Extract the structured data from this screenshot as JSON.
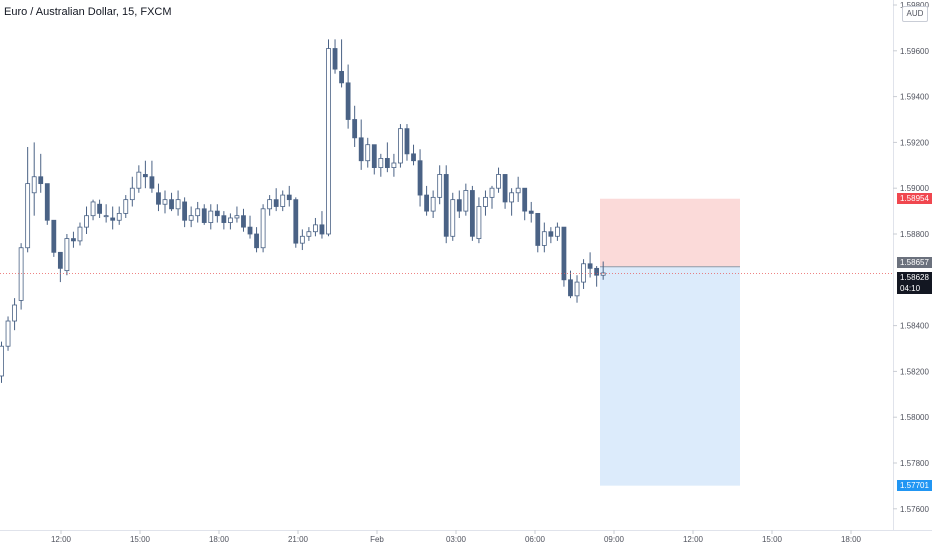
{
  "header": {
    "title": "Euro / Australian Dollar, 15, FXCM",
    "currency": "AUD"
  },
  "colors": {
    "up_fill": "#ffffff",
    "down_fill": "#4a6285",
    "wick": "#4a6285",
    "stop_zone": "#fbdad9",
    "target_zone": "#dcebfb",
    "stop_tag": "#f0474f",
    "target_tag": "#2196f3",
    "entry_tag": "#6b717d",
    "last_tag": "#131722",
    "current_line": "#e85a5a"
  },
  "price_tags": {
    "stop": "1.58954",
    "entry": "1.58657",
    "last": "1.58628",
    "countdown": "04:10",
    "target": "1.57701"
  },
  "chart_data": {
    "type": "candlestick",
    "title": "Euro / Australian Dollar, 15, FXCM",
    "y_axis_ticks": [
      "1.59800",
      "1.59600",
      "1.59400",
      "1.59200",
      "1.59000",
      "1.58800",
      "1.58400",
      "1.58200",
      "1.58000",
      "1.57800",
      "1.57600"
    ],
    "x_axis_ticks": [
      "12:00",
      "15:00",
      "18:00",
      "21:00",
      "Feb",
      "03:00",
      "06:00",
      "09:00",
      "12:00",
      "15:00",
      "18:00"
    ],
    "ylim": [
      1.5758,
      1.5983
    ],
    "candles": [
      [
        1.5818,
        1.5833,
        1.5815,
        1.5831
      ],
      [
        1.5831,
        1.5844,
        1.5829,
        1.5842
      ],
      [
        1.5842,
        1.5852,
        1.5838,
        1.5849
      ],
      [
        1.5851,
        1.5876,
        1.5847,
        1.5874
      ],
      [
        1.5874,
        1.5918,
        1.5872,
        1.5902
      ],
      [
        1.5898,
        1.592,
        1.5888,
        1.5905
      ],
      [
        1.5905,
        1.5915,
        1.5898,
        1.5902
      ],
      [
        1.5902,
        1.5902,
        1.5884,
        1.5886
      ],
      [
        1.5886,
        1.5886,
        1.587,
        1.5872
      ],
      [
        1.5872,
        1.587,
        1.5859,
        1.5865
      ],
      [
        1.5864,
        1.588,
        1.5862,
        1.5878
      ],
      [
        1.5878,
        1.5881,
        1.5874,
        1.5877
      ],
      [
        1.5877,
        1.5885,
        1.5875,
        1.5883
      ],
      [
        1.5883,
        1.5892,
        1.588,
        1.5888
      ],
      [
        1.5888,
        1.5895,
        1.5886,
        1.5894
      ],
      [
        1.5893,
        1.5895,
        1.5887,
        1.5889
      ],
      [
        1.5888,
        1.5893,
        1.5885,
        1.5888
      ],
      [
        1.5887,
        1.5892,
        1.5882,
        1.5886
      ],
      [
        1.5886,
        1.5892,
        1.5884,
        1.5889
      ],
      [
        1.5889,
        1.5897,
        1.5887,
        1.5895
      ],
      [
        1.5895,
        1.5905,
        1.5892,
        1.59
      ],
      [
        1.59,
        1.591,
        1.5898,
        1.5907
      ],
      [
        1.5906,
        1.5912,
        1.59,
        1.5905
      ],
      [
        1.5905,
        1.5912,
        1.5898,
        1.59
      ],
      [
        1.5898,
        1.5902,
        1.589,
        1.5893
      ],
      [
        1.5893,
        1.5899,
        1.5889,
        1.5895
      ],
      [
        1.5895,
        1.5898,
        1.589,
        1.5891
      ],
      [
        1.5891,
        1.5899,
        1.5888,
        1.5895
      ],
      [
        1.5894,
        1.5896,
        1.5883,
        1.5886
      ],
      [
        1.5886,
        1.5892,
        1.5883,
        1.5888
      ],
      [
        1.5888,
        1.5894,
        1.5885,
        1.5891
      ],
      [
        1.5891,
        1.5893,
        1.5884,
        1.5885
      ],
      [
        1.5885,
        1.5893,
        1.5882,
        1.589
      ],
      [
        1.589,
        1.5893,
        1.5885,
        1.5888
      ],
      [
        1.5888,
        1.589,
        1.5882,
        1.5885
      ],
      [
        1.5885,
        1.5889,
        1.5882,
        1.5887
      ],
      [
        1.5887,
        1.5892,
        1.5885,
        1.5888
      ],
      [
        1.5888,
        1.5891,
        1.5881,
        1.5883
      ],
      [
        1.5883,
        1.5888,
        1.5878,
        1.588
      ],
      [
        1.588,
        1.5883,
        1.5872,
        1.5874
      ],
      [
        1.5874,
        1.5893,
        1.5872,
        1.5891
      ],
      [
        1.5891,
        1.5897,
        1.5888,
        1.5895
      ],
      [
        1.5895,
        1.59,
        1.589,
        1.5892
      ],
      [
        1.5892,
        1.5899,
        1.589,
        1.5897
      ],
      [
        1.5897,
        1.5901,
        1.5892,
        1.5895
      ],
      [
        1.5895,
        1.5896,
        1.5874,
        1.5876
      ],
      [
        1.5876,
        1.5882,
        1.5873,
        1.5879
      ],
      [
        1.5879,
        1.5883,
        1.5877,
        1.5881
      ],
      [
        1.5881,
        1.5887,
        1.5879,
        1.5884
      ],
      [
        1.5884,
        1.589,
        1.5878,
        1.588
      ],
      [
        1.588,
        1.5965,
        1.5879,
        1.5961
      ],
      [
        1.5961,
        1.5965,
        1.595,
        1.5952
      ],
      [
        1.5951,
        1.5965,
        1.5944,
        1.5946
      ],
      [
        1.5946,
        1.5954,
        1.5926,
        1.593
      ],
      [
        1.593,
        1.5936,
        1.5918,
        1.5922
      ],
      [
        1.5922,
        1.593,
        1.5908,
        1.5912
      ],
      [
        1.5912,
        1.5922,
        1.5909,
        1.5919
      ],
      [
        1.5919,
        1.5919,
        1.5906,
        1.5909
      ],
      [
        1.5909,
        1.5915,
        1.5905,
        1.5913
      ],
      [
        1.5913,
        1.592,
        1.5907,
        1.5909
      ],
      [
        1.5909,
        1.5915,
        1.5905,
        1.5911
      ],
      [
        1.5911,
        1.5928,
        1.5909,
        1.5926
      ],
      [
        1.5926,
        1.5928,
        1.5912,
        1.5915
      ],
      [
        1.5915,
        1.5919,
        1.591,
        1.5912
      ],
      [
        1.5912,
        1.5917,
        1.5892,
        1.5897
      ],
      [
        1.5897,
        1.5901,
        1.5888,
        1.589
      ],
      [
        1.589,
        1.5899,
        1.5887,
        1.5896
      ],
      [
        1.5896,
        1.591,
        1.5893,
        1.5906
      ],
      [
        1.5906,
        1.591,
        1.5876,
        1.5879
      ],
      [
        1.5879,
        1.5898,
        1.5877,
        1.5895
      ],
      [
        1.5895,
        1.5899,
        1.5887,
        1.589
      ],
      [
        1.589,
        1.5902,
        1.5888,
        1.5899
      ],
      [
        1.5899,
        1.5901,
        1.5877,
        1.5879
      ],
      [
        1.5878,
        1.5896,
        1.5876,
        1.5892
      ],
      [
        1.5892,
        1.5899,
        1.5888,
        1.5896
      ],
      [
        1.5896,
        1.5901,
        1.5891,
        1.59
      ],
      [
        1.59,
        1.5909,
        1.5898,
        1.5906
      ],
      [
        1.5906,
        1.5906,
        1.5891,
        1.5894
      ],
      [
        1.5894,
        1.59,
        1.5888,
        1.5898
      ],
      [
        1.5898,
        1.5905,
        1.5894,
        1.59
      ],
      [
        1.59,
        1.59,
        1.5886,
        1.589
      ],
      [
        1.589,
        1.5894,
        1.5885,
        1.5889
      ],
      [
        1.5889,
        1.5889,
        1.5872,
        1.5875
      ],
      [
        1.5875,
        1.5885,
        1.5872,
        1.5881
      ],
      [
        1.5881,
        1.5883,
        1.5876,
        1.5879
      ],
      [
        1.5879,
        1.5885,
        1.5877,
        1.5883
      ],
      [
        1.5883,
        1.5883,
        1.5857,
        1.586
      ],
      [
        1.586,
        1.5864,
        1.5852,
        1.5853
      ],
      [
        1.5853,
        1.5862,
        1.585,
        1.5859
      ],
      [
        1.5859,
        1.5869,
        1.5856,
        1.5867
      ],
      [
        1.5867,
        1.5872,
        1.5861,
        1.5865
      ],
      [
        1.5865,
        1.5866,
        1.5857,
        1.5862
      ],
      [
        1.5862,
        1.5868,
        1.586,
        1.5863
      ]
    ],
    "position": {
      "stop": 1.58954,
      "entry": 1.58657,
      "target": 1.57701
    },
    "current_price": 1.58628,
    "grid": false
  }
}
